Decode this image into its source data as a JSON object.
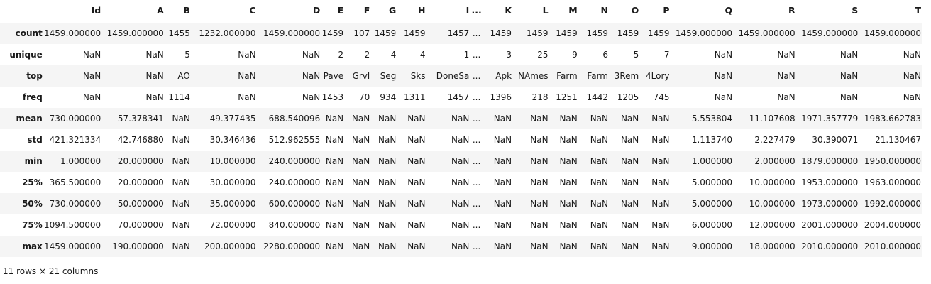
{
  "columns": [
    "Id",
    "A",
    "B",
    "C",
    "D",
    "E",
    "F",
    "G",
    "H",
    "I",
    "...",
    "K",
    "L",
    "M",
    "N",
    "O",
    "P",
    "Q",
    "R",
    "S",
    "T"
  ],
  "rows": [
    {
      "label": "count",
      "cells": [
        "1459.000000",
        "1459.000000",
        "1455",
        "1232.000000",
        "1459.000000",
        "1459",
        "107",
        "1459",
        "1459",
        "1457",
        "...",
        "1459",
        "1459",
        "1459",
        "1459",
        "1459",
        "1459",
        "1459.000000",
        "1459.000000",
        "1459.000000",
        "1459.000000"
      ]
    },
    {
      "label": "unique",
      "cells": [
        "NaN",
        "NaN",
        "5",
        "NaN",
        "NaN",
        "2",
        "2",
        "4",
        "4",
        "1",
        "...",
        "3",
        "25",
        "9",
        "6",
        "5",
        "7",
        "NaN",
        "NaN",
        "NaN",
        "NaN"
      ]
    },
    {
      "label": "top",
      "cells": [
        "NaN",
        "NaN",
        "AO",
        "NaN",
        "NaN",
        "Pave",
        "Grvl",
        "Seg",
        "Sks",
        "DoneSa",
        "...",
        "Apk",
        "NAmes",
        "Farm",
        "Farm",
        "3Rem",
        "4Lory",
        "NaN",
        "NaN",
        "NaN",
        "NaN"
      ]
    },
    {
      "label": "freq",
      "cells": [
        "NaN",
        "NaN",
        "1114",
        "NaN",
        "NaN",
        "1453",
        "70",
        "934",
        "1311",
        "1457",
        "...",
        "1396",
        "218",
        "1251",
        "1442",
        "1205",
        "745",
        "NaN",
        "NaN",
        "NaN",
        "NaN"
      ]
    },
    {
      "label": "mean",
      "cells": [
        "730.000000",
        "57.378341",
        "NaN",
        "49.377435",
        "688.540096",
        "NaN",
        "NaN",
        "NaN",
        "NaN",
        "NaN",
        "...",
        "NaN",
        "NaN",
        "NaN",
        "NaN",
        "NaN",
        "NaN",
        "5.553804",
        "11.107608",
        "1971.357779",
        "1983.662783"
      ]
    },
    {
      "label": "std",
      "cells": [
        "421.321334",
        "42.746880",
        "NaN",
        "30.346436",
        "512.962555",
        "NaN",
        "NaN",
        "NaN",
        "NaN",
        "NaN",
        "...",
        "NaN",
        "NaN",
        "NaN",
        "NaN",
        "NaN",
        "NaN",
        "1.113740",
        "2.227479",
        "30.390071",
        "21.130467"
      ]
    },
    {
      "label": "min",
      "cells": [
        "1.000000",
        "20.000000",
        "NaN",
        "10.000000",
        "240.000000",
        "NaN",
        "NaN",
        "NaN",
        "NaN",
        "NaN",
        "...",
        "NaN",
        "NaN",
        "NaN",
        "NaN",
        "NaN",
        "NaN",
        "1.000000",
        "2.000000",
        "1879.000000",
        "1950.000000"
      ]
    },
    {
      "label": "25%",
      "cells": [
        "365.500000",
        "20.000000",
        "NaN",
        "30.000000",
        "240.000000",
        "NaN",
        "NaN",
        "NaN",
        "NaN",
        "NaN",
        "...",
        "NaN",
        "NaN",
        "NaN",
        "NaN",
        "NaN",
        "NaN",
        "5.000000",
        "10.000000",
        "1953.000000",
        "1963.000000"
      ]
    },
    {
      "label": "50%",
      "cells": [
        "730.000000",
        "50.000000",
        "NaN",
        "35.000000",
        "600.000000",
        "NaN",
        "NaN",
        "NaN",
        "NaN",
        "NaN",
        "...",
        "NaN",
        "NaN",
        "NaN",
        "NaN",
        "NaN",
        "NaN",
        "5.000000",
        "10.000000",
        "1973.000000",
        "1992.000000"
      ]
    },
    {
      "label": "75%",
      "cells": [
        "1094.500000",
        "70.000000",
        "NaN",
        "72.000000",
        "840.000000",
        "NaN",
        "NaN",
        "NaN",
        "NaN",
        "NaN",
        "...",
        "NaN",
        "NaN",
        "NaN",
        "NaN",
        "NaN",
        "NaN",
        "6.000000",
        "12.000000",
        "2001.000000",
        "2004.000000"
      ]
    },
    {
      "label": "max",
      "cells": [
        "1459.000000",
        "190.000000",
        "NaN",
        "200.000000",
        "2280.000000",
        "NaN",
        "NaN",
        "NaN",
        "NaN",
        "NaN",
        "...",
        "NaN",
        "NaN",
        "NaN",
        "NaN",
        "NaN",
        "NaN",
        "9.000000",
        "18.000000",
        "2010.000000",
        "2010.000000"
      ]
    }
  ],
  "footer": "11 rows × 21 columns",
  "colors": {
    "stripe": "#f5f5f5",
    "background": "#ffffff",
    "text": "#1a1a1a"
  }
}
